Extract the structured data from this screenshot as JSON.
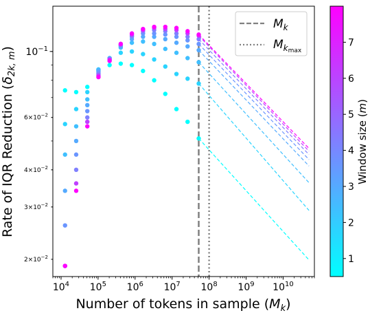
{
  "chart_data": {
    "type": "scatter",
    "xlabel": "Number of tokens in sample (M_k)",
    "ylabel": "Rate of IQR Reduction (δ_{2k,m})",
    "x_scale": "log",
    "y_scale": "log",
    "xlim": [
      6000,
      70000000000
    ],
    "ylim": [
      0.0175,
      0.142
    ],
    "x_ticks": [
      {
        "value": 10000,
        "base": "10",
        "exp": "4"
      },
      {
        "value": 100000,
        "base": "10",
        "exp": "5"
      },
      {
        "value": 1000000,
        "base": "10",
        "exp": "6"
      },
      {
        "value": 10000000,
        "base": "10",
        "exp": "7"
      },
      {
        "value": 100000000,
        "base": "10",
        "exp": "8"
      },
      {
        "value": 1000000000,
        "base": "10",
        "exp": "9"
      },
      {
        "value": 10000000000,
        "base": "10",
        "exp": "10"
      }
    ],
    "y_ticks": [
      {
        "value": 0.1,
        "base": "10",
        "exp": "−1",
        "major": true
      },
      {
        "value": 0.06,
        "base": "6×10",
        "exp": "−2",
        "major": false
      },
      {
        "value": 0.04,
        "base": "4×10",
        "exp": "−2",
        "major": false
      },
      {
        "value": 0.03,
        "base": "3×10",
        "exp": "−2",
        "major": false
      },
      {
        "value": 0.02,
        "base": "2×10",
        "exp": "−2",
        "major": false
      }
    ],
    "x_samples": [
      12800,
      25600,
      51200,
      102400,
      204800,
      409600,
      819200,
      1638400,
      3276800,
      6553600,
      13107200,
      26214400,
      52428800
    ],
    "series": [
      {
        "m": 1,
        "color": "#00ffff",
        "values": [
          0.074,
          0.073,
          0.076,
          0.086,
          0.09,
          0.091,
          0.09,
          0.086,
          0.08,
          0.072,
          0.064,
          0.058,
          0.051
        ]
      },
      {
        "m": 2,
        "color": "#2ad4ff",
        "values": [
          0.057,
          0.064,
          0.073,
          0.087,
          0.093,
          0.099,
          0.1,
          0.098,
          0.094,
          0.089,
          0.084,
          0.081,
          0.078
        ]
      },
      {
        "m": 3,
        "color": "#40bfff",
        "values": [
          0.045,
          0.056,
          0.069,
          0.087,
          0.095,
          0.103,
          0.107,
          0.108,
          0.106,
          0.102,
          0.099,
          0.095,
          0.092
        ]
      },
      {
        "m": 4,
        "color": "#55aaff",
        "values": [
          0.034,
          0.05,
          0.066,
          0.086,
          0.095,
          0.104,
          0.11,
          0.112,
          0.112,
          0.11,
          0.107,
          0.104,
          0.101
        ]
      },
      {
        "m": 5,
        "color": "#6a95ff",
        "values": [
          0.026,
          0.045,
          0.063,
          0.085,
          0.094,
          0.105,
          0.112,
          0.115,
          0.115,
          0.114,
          0.112,
          0.109,
          0.106
        ]
      },
      {
        "m": 6,
        "color": "#8080ff",
        "values": [
          0.019,
          0.04,
          0.06,
          0.084,
          0.094,
          0.105,
          0.113,
          0.117,
          0.118,
          0.117,
          0.115,
          0.112,
          0.11
        ]
      },
      {
        "m": 7,
        "color": "#bf40ff",
        "values": [
          0.019,
          0.036,
          0.058,
          0.083,
          0.094,
          0.106,
          0.114,
          0.118,
          0.12,
          0.119,
          0.118,
          0.115,
          0.113
        ]
      },
      {
        "m": 8,
        "color": "#ff00ff",
        "values": [
          0.019,
          0.034,
          0.056,
          0.082,
          0.093,
          0.106,
          0.115,
          0.119,
          0.121,
          0.121,
          0.12,
          0.117,
          0.114
        ]
      }
    ],
    "extrapolation": {
      "x_end": 50000000000,
      "y_end": [
        0.0199,
        0.0292,
        0.0362,
        0.0412,
        0.0433,
        0.045,
        0.0462,
        0.0472
      ]
    },
    "vlines": [
      {
        "label_base": "M",
        "label_sub": "k",
        "x": 52428800,
        "style": "dashed"
      },
      {
        "label_base": "M",
        "label_sub": "k_max",
        "x": 100000000,
        "style": "dotted"
      }
    ],
    "legend_position": "top-right",
    "colorbar": {
      "label": "Window size (m)",
      "range": [
        0.5,
        8
      ],
      "ticks": [
        1,
        2,
        3,
        4,
        5,
        6,
        7
      ],
      "colors": [
        "#00ffff",
        "#ff00ff"
      ]
    }
  }
}
